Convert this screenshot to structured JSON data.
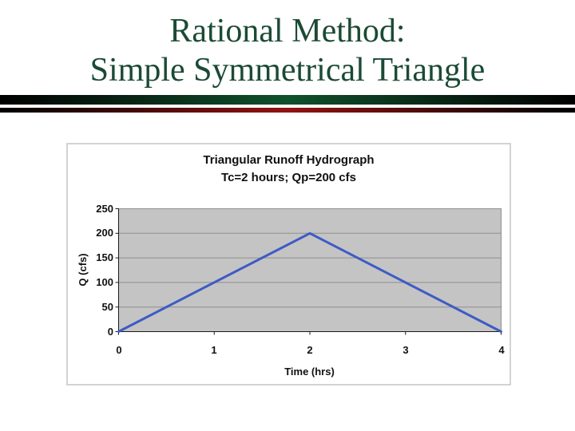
{
  "slide": {
    "title": {
      "line1": "Rational Method:",
      "line2": "Simple Symmetrical Triangle",
      "color": "#1B4A35"
    },
    "accent_bars": {
      "green_center": "#11512C",
      "red_center": "#911311",
      "edge": "#000000"
    }
  },
  "chart_data": {
    "type": "line",
    "title": "Triangular Runoff Hydrograph",
    "subtitle": "Tc=2 hours; Qp=200 cfs",
    "xlabel": "Time (hrs)",
    "ylabel": "Q (cfs)",
    "series": [
      {
        "name": "Runoff hydrograph",
        "x": [
          0,
          2,
          4
        ],
        "y": [
          0,
          200,
          0
        ]
      }
    ],
    "xlim": [
      0,
      4
    ],
    "ylim": [
      0,
      250
    ],
    "x_ticks": [
      0,
      1,
      2,
      3,
      4
    ],
    "y_ticks": [
      0,
      50,
      100,
      150,
      200,
      250
    ],
    "grid": "horizontal",
    "legend_position": "none",
    "line_color": "#3D5BC6",
    "plot_bg_color": "#C4C4C4",
    "grid_color": "#8F8F8F",
    "axis_color": "#1A1A1A",
    "frame_border_color": "#D3D3D3"
  }
}
